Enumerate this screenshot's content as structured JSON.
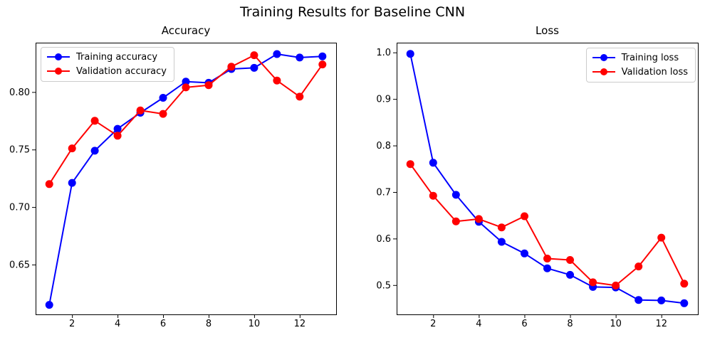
{
  "figure": {
    "suptitle": "Training Results for Baseline CNN",
    "background": "#ffffff",
    "text_color": "#000000",
    "axis_color": "#000000",
    "legend_border_color": "#cccccc"
  },
  "chart_data": [
    {
      "type": "line",
      "title": "Accuracy",
      "x": [
        1,
        2,
        3,
        4,
        5,
        6,
        7,
        8,
        9,
        10,
        11,
        12,
        13
      ],
      "series": [
        {
          "name": "Training accuracy",
          "color": "#0000ff",
          "marker": "circle",
          "values": [
            0.615,
            0.721,
            0.749,
            0.768,
            0.782,
            0.795,
            0.809,
            0.808,
            0.82,
            0.821,
            0.833,
            0.83,
            0.831
          ]
        },
        {
          "name": "Validation accuracy",
          "color": "#ff0000",
          "marker": "circle",
          "values": [
            0.72,
            0.751,
            0.775,
            0.762,
            0.784,
            0.781,
            0.804,
            0.806,
            0.822,
            0.832,
            0.81,
            0.796,
            0.824
          ]
        }
      ],
      "xlim": [
        0.4,
        13.6
      ],
      "ylim": [
        0.6067,
        0.8429
      ],
      "xticks": [
        2,
        4,
        6,
        8,
        10,
        12
      ],
      "xtick_labels": [
        "2",
        "4",
        "6",
        "8",
        "10",
        "12"
      ],
      "yticks": [
        0.65,
        0.7,
        0.75,
        0.8
      ],
      "ytick_labels": [
        "0.65",
        "0.70",
        "0.75",
        "0.80"
      ],
      "grid": false,
      "legend": {
        "position": "upper-left",
        "entries": [
          "Training accuracy",
          "Validation accuracy"
        ]
      }
    },
    {
      "type": "line",
      "title": "Loss",
      "x": [
        1,
        2,
        3,
        4,
        5,
        6,
        7,
        8,
        9,
        10,
        11,
        12,
        13
      ],
      "series": [
        {
          "name": "Training loss",
          "color": "#0000ff",
          "marker": "circle",
          "values": [
            0.997,
            0.763,
            0.694,
            0.636,
            0.593,
            0.568,
            0.536,
            0.522,
            0.496,
            0.495,
            0.468,
            0.467,
            0.461
          ]
        },
        {
          "name": "Validation loss",
          "color": "#ff0000",
          "marker": "circle",
          "values": [
            0.76,
            0.692,
            0.637,
            0.642,
            0.624,
            0.648,
            0.557,
            0.554,
            0.506,
            0.499,
            0.54,
            0.602,
            0.503
          ]
        }
      ],
      "xlim": [
        0.4,
        13.6
      ],
      "ylim": [
        0.437,
        1.021
      ],
      "xticks": [
        2,
        4,
        6,
        8,
        10,
        12
      ],
      "xtick_labels": [
        "2",
        "4",
        "6",
        "8",
        "10",
        "12"
      ],
      "yticks": [
        0.5,
        0.6,
        0.7,
        0.8,
        0.9,
        1.0
      ],
      "ytick_labels": [
        "0.5",
        "0.6",
        "0.7",
        "0.8",
        "0.9",
        "1.0"
      ],
      "grid": false,
      "legend": {
        "position": "upper-right",
        "entries": [
          "Training loss",
          "Validation loss"
        ]
      }
    }
  ]
}
